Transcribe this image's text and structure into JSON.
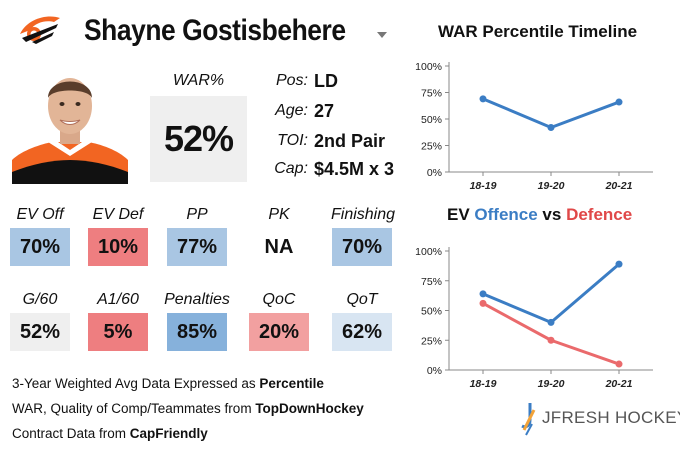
{
  "player": {
    "name": "Shayne Gostisbehere",
    "war_label": "WAR%",
    "war_value": "52%",
    "info": [
      {
        "label": "Pos:",
        "value": "LD"
      },
      {
        "label": "Age:",
        "value": "27"
      },
      {
        "label": "TOI:",
        "value": "2nd Pair"
      },
      {
        "label": "Cap:",
        "value": "$4.5M x 3"
      }
    ]
  },
  "metrics": [
    {
      "label": "EV Off",
      "value": "70%",
      "color": "#a9c6e3"
    },
    {
      "label": "EV Def",
      "value": "10%",
      "color": "#ee7e80"
    },
    {
      "label": "PP",
      "value": "77%",
      "color": "#a9c6e3"
    },
    {
      "label": "PK",
      "value": "NA",
      "color": "#ffffff"
    },
    {
      "label": "Finishing",
      "value": "70%",
      "color": "#a9c6e3"
    },
    {
      "label": "G/60",
      "value": "52%",
      "color": "#efefef"
    },
    {
      "label": "A1/60",
      "value": "5%",
      "color": "#ee7e80"
    },
    {
      "label": "Penalties",
      "value": "85%",
      "color": "#86b1db"
    },
    {
      "label": "QoC",
      "value": "20%",
      "color": "#f2a0a0"
    },
    {
      "label": "QoT",
      "value": "62%",
      "color": "#d8e5f2"
    }
  ],
  "footer": {
    "line1_text": "3-Year Weighted Avg Data Expressed as ",
    "line1_bold": "Percentile",
    "line2_text": "WAR, Quality of Comp/Teammates from ",
    "line2_bold": "TopDownHockey",
    "line3_text": "Contract Data from ",
    "line3_bold": "CapFriendly"
  },
  "brand": {
    "name": "JFRESH HOCKEY"
  },
  "chart_data": [
    {
      "type": "line",
      "title": "WAR Percentile Timeline",
      "categories": [
        "18-19",
        "19-20",
        "20-21"
      ],
      "yticks": [
        "0%",
        "25%",
        "50%",
        "75%",
        "100%"
      ],
      "ylim": [
        0,
        100
      ],
      "grid": false,
      "series": [
        {
          "values": [
            69,
            42,
            66
          ],
          "color": "#3b7dc4"
        }
      ]
    },
    {
      "type": "line",
      "title_parts": [
        "EV ",
        "Offence",
        " vs ",
        "Defence"
      ],
      "title_colors": [
        "#111111",
        "#3b7dc4",
        "#111111",
        "#e04848"
      ],
      "categories": [
        "18-19",
        "19-20",
        "20-21"
      ],
      "yticks": [
        "0%",
        "25%",
        "50%",
        "75%",
        "100%"
      ],
      "ylim": [
        0,
        100
      ],
      "grid": false,
      "series": [
        {
          "name": "Offence",
          "values": [
            64,
            40,
            89
          ],
          "color": "#3b7dc4"
        },
        {
          "name": "Defence",
          "values": [
            56,
            25,
            5
          ],
          "color": "#ea6a6c"
        }
      ]
    }
  ]
}
